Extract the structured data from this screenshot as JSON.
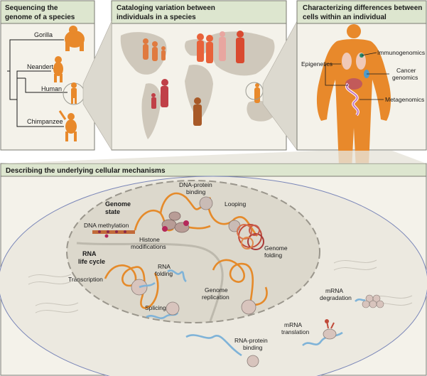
{
  "panels": {
    "sequencing": {
      "title_line1": "Sequencing the",
      "title_line2": "genome of a species",
      "labels": [
        "Gorilla",
        "Neandertal",
        "Human",
        "Chimpanzee"
      ]
    },
    "cataloging": {
      "title_line1": "Cataloging variation between",
      "title_line2": "individuals in a species"
    },
    "characterizing": {
      "title_line1": "Characterizing differences between",
      "title_line2": "cells within an individual",
      "labels": {
        "immunogenomics": "Immunogenomics",
        "epigenetics": "Epigenetics",
        "cancer_line1": "Cancer",
        "cancer_line2": "genomics",
        "metagenomics": "Metagenomics"
      }
    },
    "mechanisms": {
      "title": "Describing the underlying cellular mechanisms",
      "genome_state_line1": "Genome",
      "genome_state_line2": "state",
      "dna_methylation": "DNA methylation",
      "histone_line1": "Histone",
      "histone_line2": "modifications",
      "dna_protein_line1": "DNA-protein",
      "dna_protein_line2": "binding",
      "looping": "Looping",
      "genome_folding_line1": "Genome",
      "genome_folding_line2": "folding",
      "rna_cycle_line1": "RNA",
      "rna_cycle_line2": "life cycle",
      "transcription": "Transcription",
      "rna_folding_line1": "RNA",
      "rna_folding_line2": "folding",
      "splicing": "Splicing",
      "genome_replication_line1": "Genome",
      "genome_replication_line2": "replication",
      "rna_protein_line1": "RNA-protein",
      "rna_protein_line2": "binding",
      "mrna_translation_line1": "mRNA",
      "mrna_translation_line2": "translation",
      "mrna_degradation_line1": "mRNA",
      "mrna_degradation_line2": "degradation"
    }
  },
  "colors": {
    "panel_bg": "#f4f2ea",
    "header_bg": "#dde6cf",
    "border": "#7a7a72",
    "orange": "#e8892b",
    "human_orange": "#e8892b",
    "map_land": "#cfc8bb",
    "dna": "#e58a2a",
    "rna": "#7fb3d8",
    "histone": "#b89c96",
    "cell_fill": "#e8e5dc",
    "nucleus_fill": "#d6d2c6"
  }
}
